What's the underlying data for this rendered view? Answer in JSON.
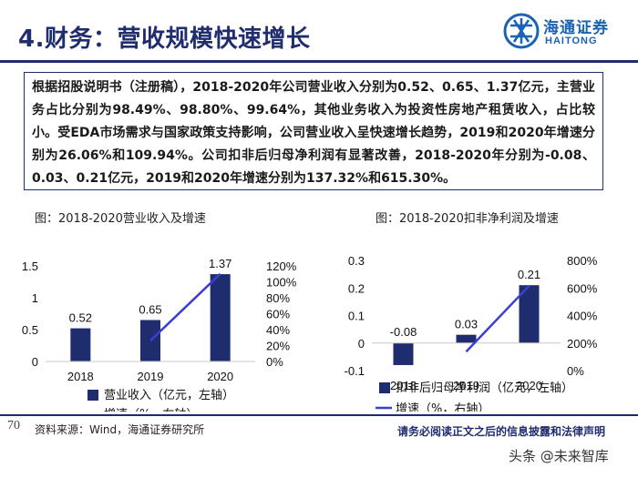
{
  "page": {
    "title": "4.财务：营收规模快速增长",
    "logo_cn": "海通证券",
    "logo_en": "HAITONG",
    "summary": "根据招股说明书（注册稿），2018-2020年公司营业收入分别为0.52、0.65、1.37亿元，主营业务占比分别为98.49%、98.80%、99.64%，其他业务收入为投资性房地产租赁收入，占比较小。受EDA市场需求与国家政策支持影响，公司营业收入呈快速增长趋势，2019和2020年增速分别为26.06%和109.94%。公司扣非后归母净利润有显著改善，2018-2020年分别为-0.08、0.03、0.21亿元，2019和2020年增速分别为137.32%和615.30%。",
    "page_number": "70",
    "source": "资料来源：Wind，海通证券研究所",
    "disclaimer": "请务必阅读正文之后的信息披露和法律声明",
    "watermark": "头条 @未来智库"
  },
  "colors": {
    "bar": "#1f2d6e",
    "line": "#3b3fd1",
    "title": "#1f2d6e",
    "logo": "#1a62b2"
  },
  "chart_data": [
    {
      "type": "bar",
      "caption": "图：2018-2020营业收入及增速",
      "categories": [
        "2018",
        "2019",
        "2020"
      ],
      "series": [
        {
          "name": "营业收入（亿元，左轴）",
          "values": [
            0.52,
            0.65,
            1.37
          ],
          "axis": "left"
        },
        {
          "name": "增速（%，右轴）",
          "type": "line",
          "values": [
            null,
            26.06,
            109.94
          ],
          "axis": "right"
        }
      ],
      "data_labels": [
        "0.52",
        "0.65",
        "1.37"
      ],
      "ylim": [
        0,
        1.5
      ],
      "yticks": [
        "0",
        "0.5",
        "1",
        "1.5"
      ],
      "y2lim": [
        0,
        120
      ],
      "y2ticks": [
        "0%",
        "20%",
        "40%",
        "60%",
        "80%",
        "100%",
        "120%"
      ],
      "legend_position": "bottom"
    },
    {
      "type": "bar",
      "caption": "图：2018-2020扣非净利润及增速",
      "categories": [
        "2018",
        "2019",
        "2020"
      ],
      "series": [
        {
          "name": "扣非后归母净利润（亿元，左轴）",
          "values": [
            -0.08,
            0.03,
            0.21
          ],
          "axis": "left"
        },
        {
          "name": "增速（%，右轴）",
          "type": "line",
          "values": [
            null,
            137.32,
            615.3
          ],
          "axis": "right"
        }
      ],
      "data_labels": [
        "-0.08",
        "0.03",
        "0.21"
      ],
      "ylim": [
        -0.1,
        0.3
      ],
      "yticks": [
        "-0.1",
        "0",
        "0.1",
        "0.2",
        "0.3"
      ],
      "y2lim": [
        0,
        800
      ],
      "y2ticks": [
        "0%",
        "200%",
        "400%",
        "600%",
        "800%"
      ],
      "legend_position": "bottom"
    }
  ]
}
